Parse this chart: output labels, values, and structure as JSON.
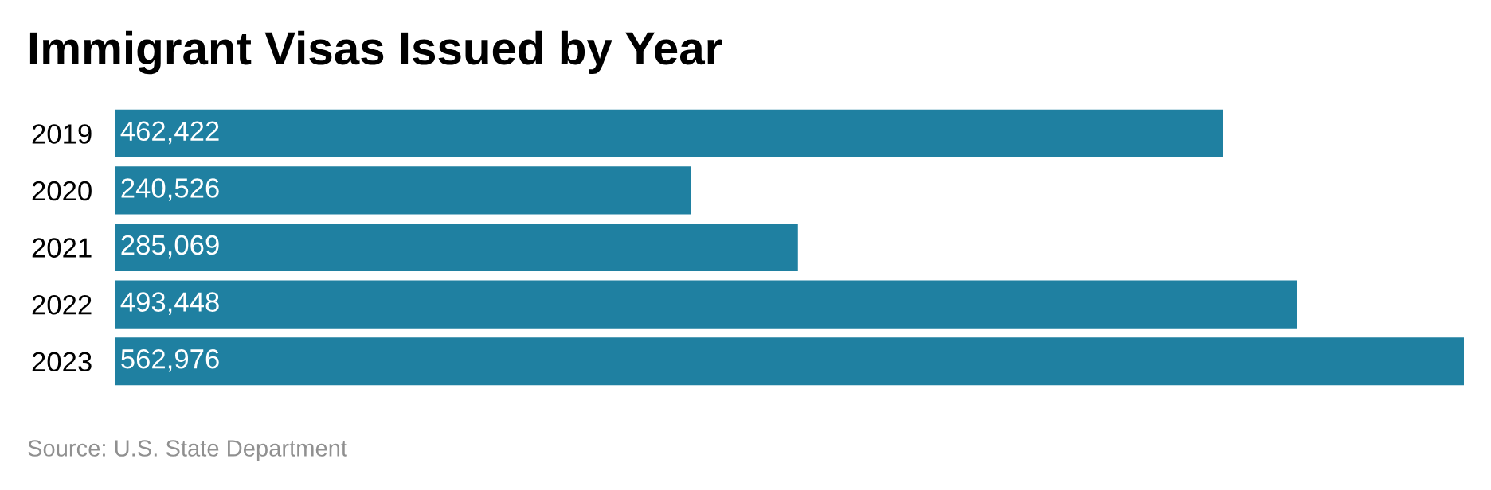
{
  "chart_data": {
    "type": "bar",
    "orientation": "horizontal",
    "title": "Immigrant Visas Issued by Year",
    "categories": [
      "2019",
      "2020",
      "2021",
      "2022",
      "2023"
    ],
    "values": [
      462422,
      240526,
      285069,
      493448,
      562976
    ],
    "value_labels": [
      "462,422",
      "240,526",
      "285,069",
      "493,448",
      "562,976"
    ],
    "color": "#1f80a1",
    "data_labels": true,
    "grid": false,
    "legend": false,
    "annotations": [
      "Source: U.S. State Department"
    ]
  }
}
